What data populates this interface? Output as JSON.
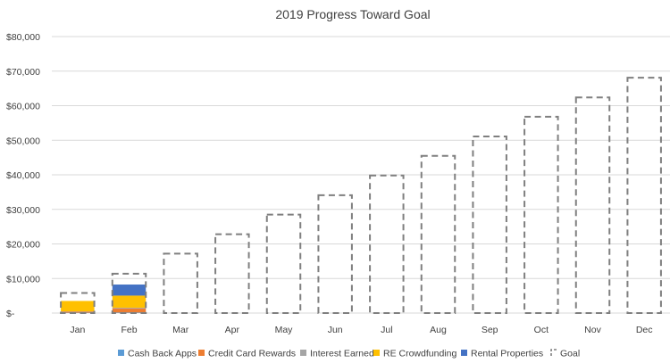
{
  "chart_data": {
    "type": "bar",
    "title": "2019 Progress Toward Goal",
    "xlabel": "",
    "ylabel": "",
    "categories": [
      "Jan",
      "Feb",
      "Mar",
      "Apr",
      "May",
      "Jun",
      "Jul",
      "Aug",
      "Sep",
      "Oct",
      "Nov",
      "Dec"
    ],
    "y_ticks": [
      0,
      10000,
      20000,
      30000,
      40000,
      50000,
      60000,
      70000,
      80000
    ],
    "y_tick_labels": [
      "$-",
      "$10,000",
      "$20,000",
      "$30,000",
      "$40,000",
      "$50,000",
      "$60,000",
      "$70,000",
      "$80,000"
    ],
    "ylim": [
      0,
      80000
    ],
    "grid": true,
    "legend_position": "bottom",
    "stacked": true,
    "series": [
      {
        "name": "Cash Back Apps",
        "color": "#5b9bd5",
        "values": [
          100,
          150,
          0,
          0,
          0,
          0,
          0,
          0,
          0,
          0,
          0,
          0
        ]
      },
      {
        "name": "Credit Card Rewards",
        "color": "#ed7d31",
        "values": [
          300,
          1200,
          0,
          0,
          0,
          0,
          0,
          0,
          0,
          0,
          0,
          0
        ]
      },
      {
        "name": "Interest Earned",
        "color": "#a5a5a5",
        "values": [
          100,
          200,
          0,
          0,
          0,
          0,
          0,
          0,
          0,
          0,
          0,
          0
        ]
      },
      {
        "name": "RE Crowdfunding",
        "color": "#ffc000",
        "values": [
          3000,
          3500,
          0,
          0,
          0,
          0,
          0,
          0,
          0,
          0,
          0,
          0
        ]
      },
      {
        "name": "Rental Properties",
        "color": "#4472c4",
        "values": [
          0,
          3200,
          0,
          0,
          0,
          0,
          0,
          0,
          0,
          0,
          0,
          0
        ]
      }
    ],
    "goal": {
      "name": "Goal",
      "color": "#7f7f7f",
      "values": [
        5800,
        11400,
        17200,
        22800,
        28500,
        34100,
        39800,
        45500,
        51100,
        56800,
        62400,
        68100
      ]
    }
  }
}
